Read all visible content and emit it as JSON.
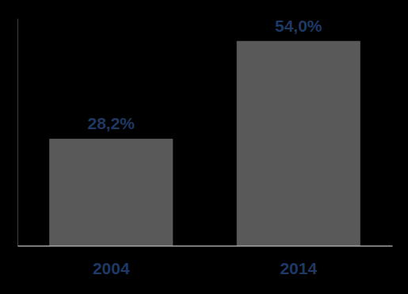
{
  "chart_data": {
    "type": "bar",
    "categories": [
      "2004",
      "2014"
    ],
    "values": [
      28.2,
      54.0
    ],
    "value_labels": [
      "28,2%",
      "54,0%"
    ],
    "color": "#595959",
    "ylim": [
      0,
      60
    ],
    "data_labels": true,
    "tick_labels": "x",
    "grid": false
  }
}
